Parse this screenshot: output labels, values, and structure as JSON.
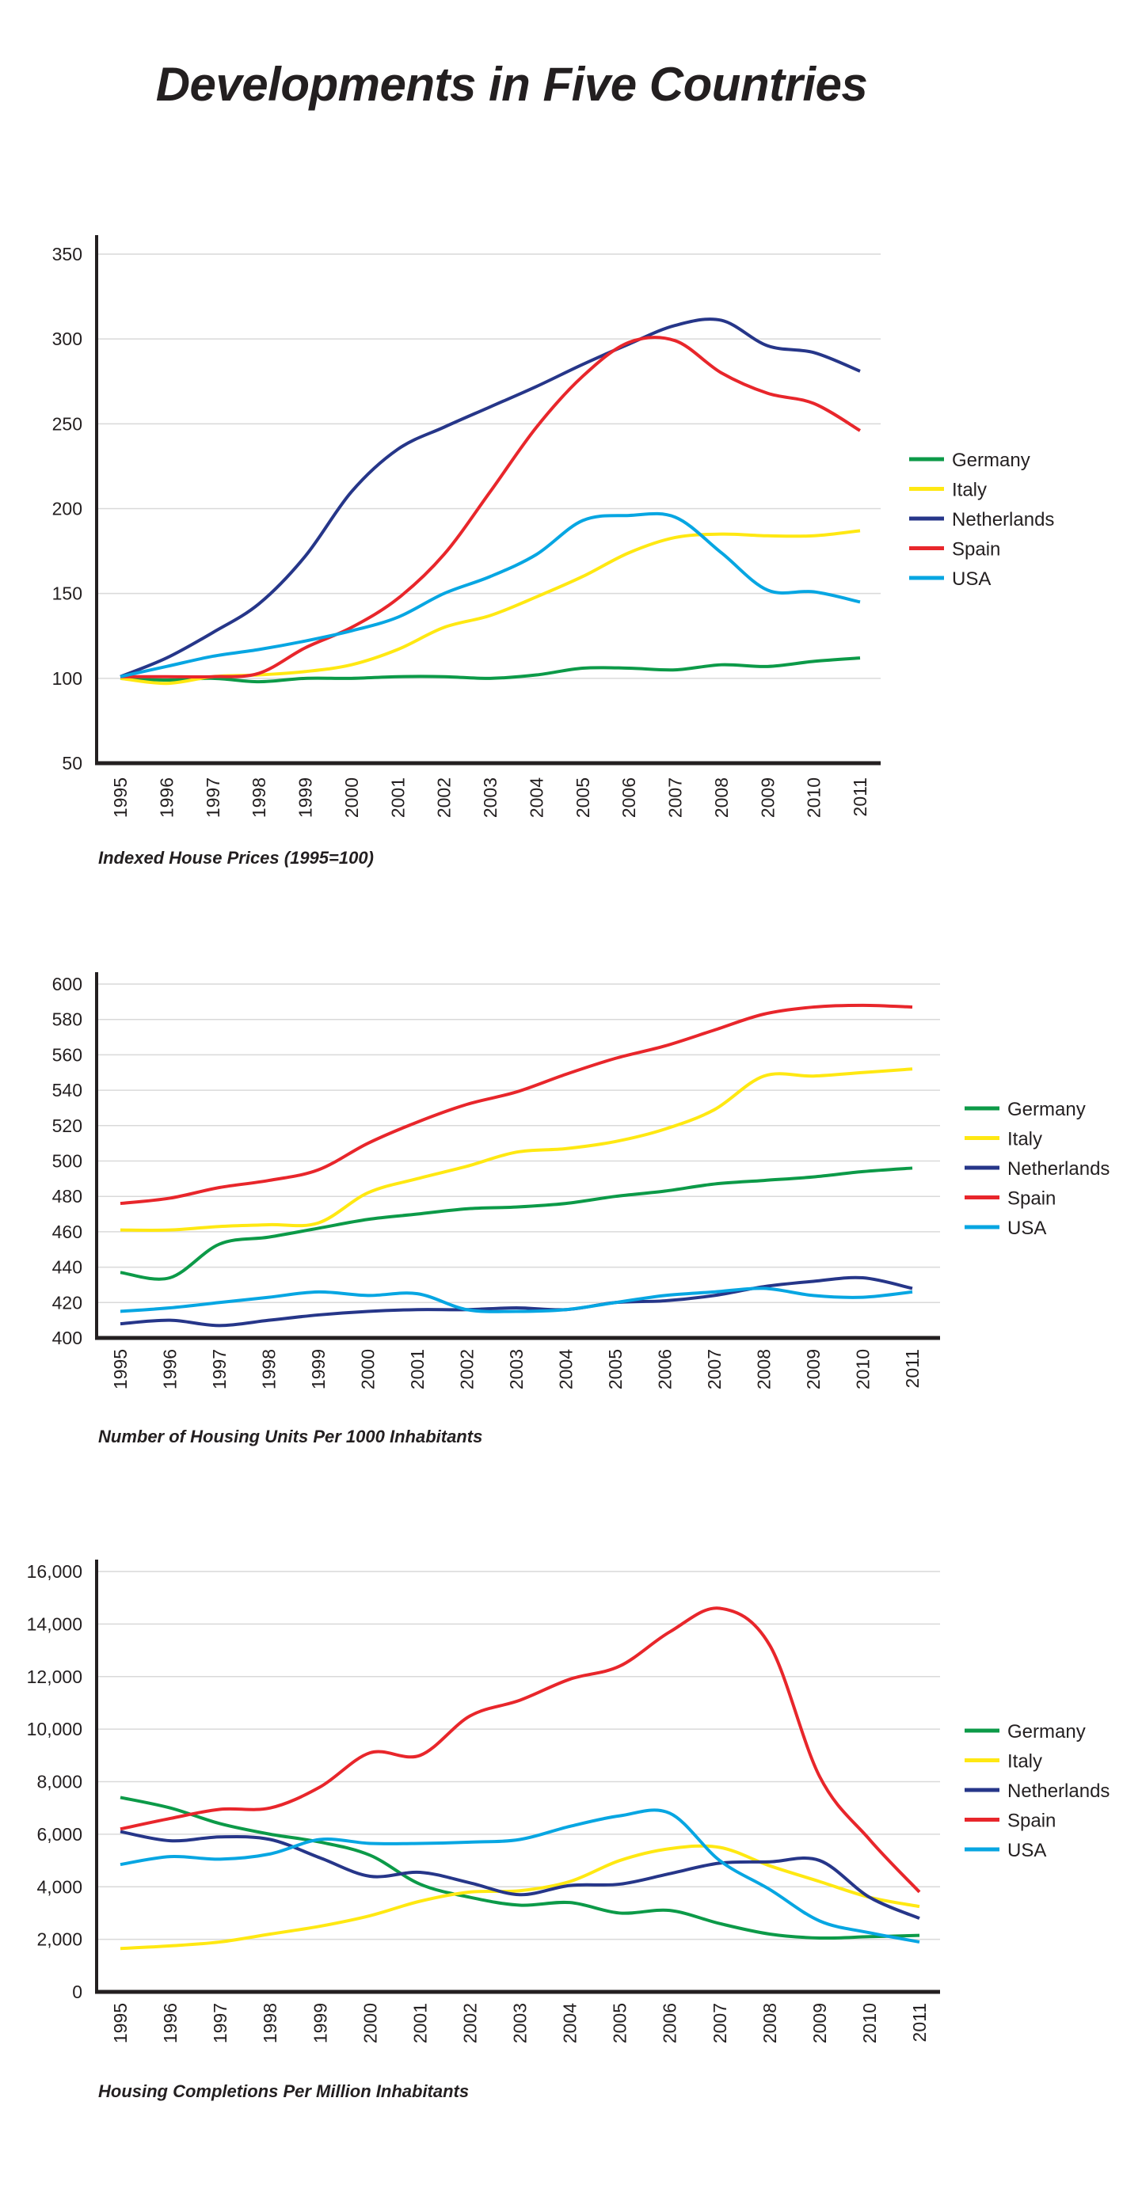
{
  "title": "Developments in Five Countries",
  "colors": {
    "Germany": "#0c9a48",
    "Italy": "#ffe812",
    "Netherlands": "#263689",
    "Spain": "#e8262b",
    "USA": "#07a6e2"
  },
  "chart_data": [
    {
      "type": "line",
      "title": "Indexed House Prices (1995=100)",
      "x": [
        1995,
        1996,
        1997,
        1998,
        1999,
        2000,
        2001,
        2002,
        2003,
        2004,
        2005,
        2006,
        2007,
        2008,
        2009,
        2010,
        2011
      ],
      "ylim": [
        50,
        350
      ],
      "yticks": [
        50,
        100,
        150,
        200,
        250,
        300,
        350
      ],
      "ytick_labels": [
        "50",
        "100",
        "150",
        "200",
        "250",
        "300",
        "350"
      ],
      "grid": true,
      "legend": "right",
      "series": [
        {
          "name": "Germany",
          "values": [
            100,
            99,
            100,
            98,
            100,
            100,
            101,
            101,
            100,
            102,
            106,
            106,
            105,
            108,
            107,
            110,
            112
          ]
        },
        {
          "name": "Italy",
          "values": [
            100,
            97,
            101,
            102,
            104,
            108,
            117,
            130,
            137,
            148,
            160,
            174,
            183,
            185,
            184,
            184,
            187
          ]
        },
        {
          "name": "Netherlands",
          "values": [
            101,
            112,
            127,
            144,
            172,
            210,
            235,
            248,
            260,
            272,
            285,
            297,
            308,
            311,
            296,
            292,
            281
          ]
        },
        {
          "name": "Spain",
          "values": [
            101,
            101,
            101,
            103,
            118,
            130,
            147,
            173,
            210,
            248,
            278,
            298,
            299,
            280,
            268,
            262,
            246
          ]
        },
        {
          "name": "USA",
          "values": [
            101,
            107,
            113,
            117,
            122,
            128,
            136,
            150,
            160,
            173,
            193,
            196,
            195,
            174,
            152,
            151,
            145
          ]
        }
      ]
    },
    {
      "type": "line",
      "title": "Number of Housing Units Per 1000 Inhabitants",
      "x": [
        1995,
        1996,
        1997,
        1998,
        1999,
        2000,
        2001,
        2002,
        2003,
        2004,
        2005,
        2006,
        2007,
        2008,
        2009,
        2010,
        2011
      ],
      "ylim": [
        400,
        600
      ],
      "yticks": [
        400,
        420,
        440,
        460,
        480,
        500,
        520,
        540,
        560,
        580,
        600
      ],
      "ytick_labels": [
        "400",
        "420",
        "440",
        "460",
        "480",
        "500",
        "520",
        "540",
        "560",
        "580",
        "600"
      ],
      "grid": true,
      "legend": "right",
      "series": [
        {
          "name": "Germany",
          "values": [
            437,
            434,
            453,
            457,
            462,
            467,
            470,
            473,
            474,
            476,
            480,
            483,
            487,
            489,
            491,
            494,
            496
          ]
        },
        {
          "name": "Italy",
          "values": [
            461,
            461,
            463,
            464,
            465,
            482,
            490,
            497,
            505,
            507,
            511,
            518,
            529,
            548,
            548,
            550,
            552
          ]
        },
        {
          "name": "Netherlands",
          "values": [
            408,
            410,
            407,
            410,
            413,
            415,
            416,
            416,
            417,
            416,
            420,
            421,
            424,
            429,
            432,
            434,
            428
          ]
        },
        {
          "name": "Spain",
          "values": [
            476,
            479,
            485,
            489,
            495,
            510,
            522,
            532,
            539,
            549,
            558,
            565,
            574,
            583,
            587,
            588,
            587
          ]
        },
        {
          "name": "USA",
          "values": [
            415,
            417,
            420,
            423,
            426,
            424,
            425,
            416,
            415,
            416,
            420,
            424,
            426,
            428,
            424,
            423,
            426
          ]
        }
      ]
    },
    {
      "type": "line",
      "title": "Housing Completions Per Million Inhabitants",
      "x": [
        1995,
        1996,
        1997,
        1998,
        1999,
        2000,
        2001,
        2002,
        2003,
        2004,
        2005,
        2006,
        2007,
        2008,
        2009,
        2010,
        2011
      ],
      "ylim": [
        0,
        16000
      ],
      "yticks": [
        0,
        2000,
        4000,
        6000,
        8000,
        10000,
        12000,
        14000,
        16000
      ],
      "ytick_labels": [
        "0",
        "2,000",
        "4,000",
        "6,000",
        "8,000",
        "10,000",
        "12,000",
        "14,000",
        "16,000"
      ],
      "grid": true,
      "legend": "right",
      "series": [
        {
          "name": "Germany",
          "values": [
            7400,
            7000,
            6400,
            6000,
            5700,
            5200,
            4100,
            3600,
            3300,
            3400,
            3000,
            3100,
            2600,
            2200,
            2050,
            2100,
            2150
          ]
        },
        {
          "name": "Italy",
          "values": [
            1650,
            1750,
            1900,
            2200,
            2500,
            2900,
            3450,
            3800,
            3850,
            4200,
            5000,
            5450,
            5500,
            4800,
            4200,
            3600,
            3250
          ]
        },
        {
          "name": "Netherlands",
          "values": [
            6100,
            5750,
            5900,
            5800,
            5100,
            4400,
            4550,
            4150,
            3700,
            4050,
            4100,
            4500,
            4900,
            4950,
            5000,
            3600,
            2800
          ]
        },
        {
          "name": "Spain",
          "values": [
            6200,
            6600,
            6950,
            7000,
            7800,
            9100,
            9000,
            10500,
            11100,
            11900,
            12400,
            13700,
            14600,
            13200,
            8200,
            5800,
            3800
          ]
        },
        {
          "name": "USA",
          "values": [
            4850,
            5150,
            5050,
            5250,
            5800,
            5650,
            5650,
            5700,
            5800,
            6300,
            6700,
            6800,
            5000,
            3900,
            2700,
            2250,
            1900
          ]
        }
      ]
    }
  ]
}
